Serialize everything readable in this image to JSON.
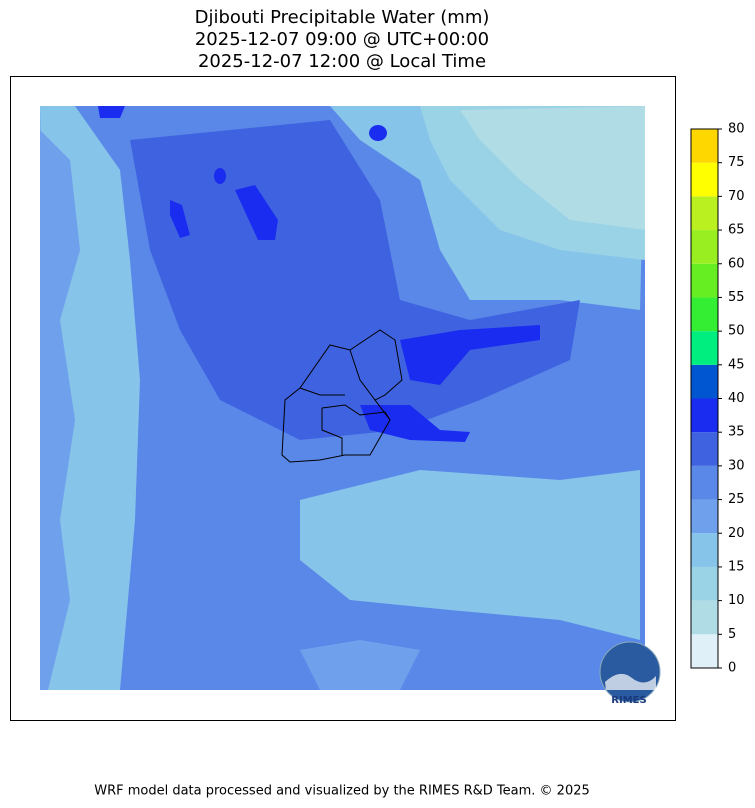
{
  "header": {
    "title_lines": [
      "Djibouti Precipitable Water (mm)",
      "2025-12-07 09:00 @ UTC+00:00",
      "2025-12-07 12:00 @ Local Time"
    ]
  },
  "colorbar": {
    "ticks": [
      0,
      5,
      10,
      15,
      20,
      25,
      30,
      35,
      40,
      45,
      50,
      55,
      60,
      65,
      70,
      75,
      80
    ],
    "colors": [
      "#dff0f8",
      "#b0dce6",
      "#9ad2e6",
      "#86c4ea",
      "#6fa0ec",
      "#5a88e8",
      "#3f63e0",
      "#1a2cf0",
      "#0055d0",
      "#00ee80",
      "#33ee33",
      "#66ee22",
      "#99ee22",
      "#bbf020",
      "#ffff00",
      "#ffd700"
    ]
  },
  "logo": {
    "text": "RIMES"
  },
  "footer": {
    "text": "WRF model data processed and visualized by the RIMES R&D Team. © 2025"
  }
}
